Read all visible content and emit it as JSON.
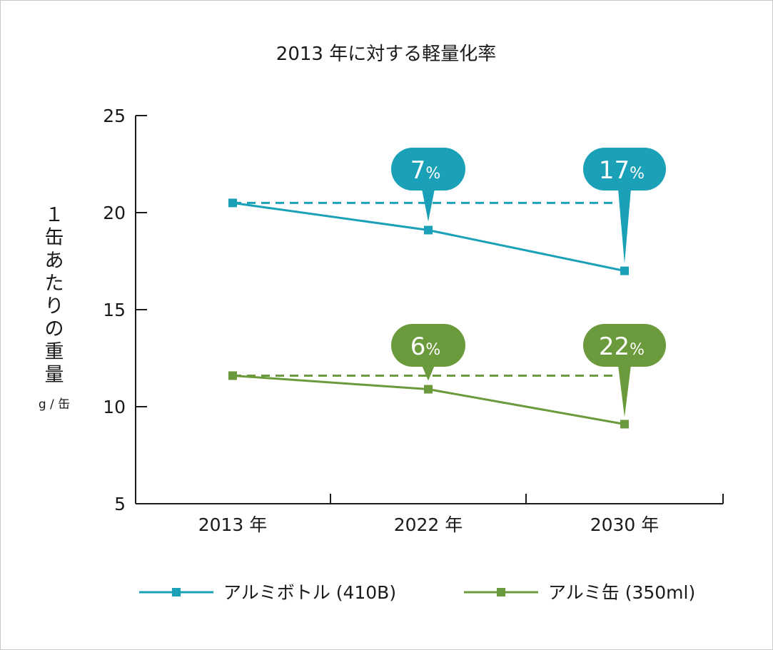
{
  "chart_data": {
    "type": "line",
    "title": "2013 年に対する軽量化率",
    "ylabel": "１缶あたりの重量",
    "yunit": "g / 缶",
    "categories": [
      "2013 年",
      "2022 年",
      "2030 年"
    ],
    "ylim": [
      5,
      25
    ],
    "yticks": [
      "5",
      "10",
      "15",
      "20",
      "25"
    ],
    "series": [
      {
        "name": "アルミボトル (410B)",
        "color": "#1aa1b8",
        "values": [
          20.5,
          19.1,
          17.0
        ],
        "callouts": [
          {
            "index": 1,
            "text": "7",
            "unit": "%"
          },
          {
            "index": 2,
            "text": "17",
            "unit": "%"
          }
        ]
      },
      {
        "name": "アルミ缶 (350ml)",
        "color": "#6b9a3c",
        "values": [
          11.6,
          10.9,
          9.1
        ],
        "callouts": [
          {
            "index": 1,
            "text": "6",
            "unit": "%"
          },
          {
            "index": 2,
            "text": "22",
            "unit": "%"
          }
        ]
      }
    ]
  }
}
